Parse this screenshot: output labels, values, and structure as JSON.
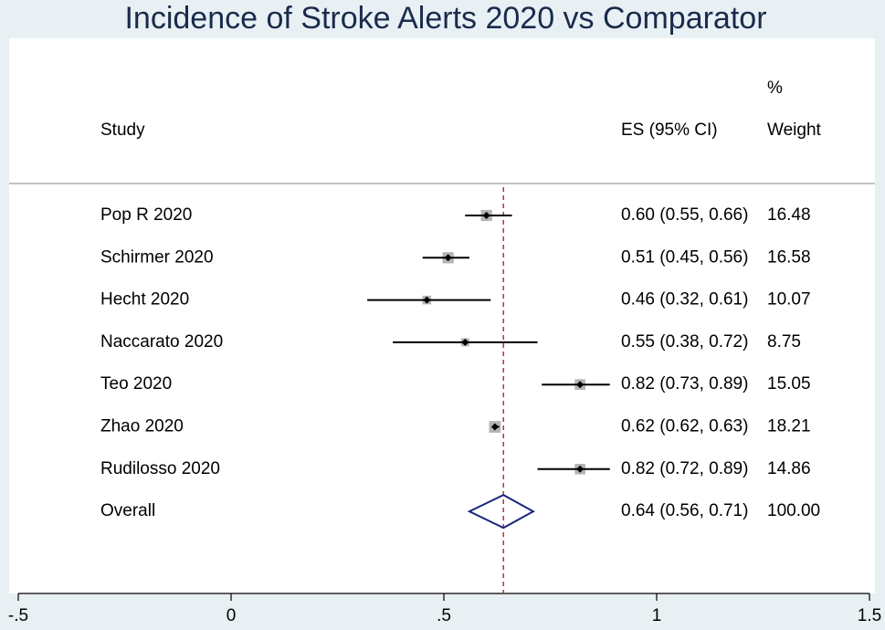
{
  "chart_data": {
    "type": "forest",
    "title": "Incidence of Stroke Alerts 2020 vs Comparator",
    "columns": {
      "study": "Study",
      "es": "ES (95% CI)",
      "weight_top": "%",
      "weight": "Weight"
    },
    "categories": [
      "Pop R 2020",
      "Schirmer 2020",
      "Hecht 2020",
      "Naccarato 2020",
      "Teo 2020",
      "Zhao 2020",
      "Rudilosso 2020",
      "Overall"
    ],
    "values": [
      0.6,
      0.51,
      0.46,
      0.55,
      0.82,
      0.62,
      0.82,
      0.64
    ],
    "ci_low": [
      0.55,
      0.45,
      0.32,
      0.38,
      0.73,
      0.62,
      0.72,
      0.56
    ],
    "ci_high": [
      0.66,
      0.56,
      0.61,
      0.72,
      0.89,
      0.63,
      0.89,
      0.71
    ],
    "value_labels": [
      "0.60 (0.55, 0.66)",
      "0.51 (0.45, 0.56)",
      "0.46 (0.32, 0.61)",
      "0.55 (0.38, 0.72)",
      "0.82 (0.73, 0.89)",
      "0.62 (0.62, 0.63)",
      "0.82 (0.72, 0.89)",
      "0.64 (0.56, 0.71)"
    ],
    "weights": [
      16.48,
      16.58,
      10.07,
      8.75,
      15.05,
      18.21,
      14.86,
      100
    ],
    "weight_labels": [
      "16.48",
      "16.58",
      "10.07",
      "8.75",
      "15.05",
      "18.21",
      "14.86",
      "100.00"
    ],
    "xlim": [
      -0.5,
      1.5
    ],
    "xticks": [
      {
        "value": -0.5,
        "label": "-.5"
      },
      0,
      {
        "value": 0.5,
        "label": ".5"
      },
      1,
      1.5
    ],
    "box_color": "#b4b4b4",
    "diamond_color": "#1a237e",
    "reference_line_color": "#a0403a"
  }
}
